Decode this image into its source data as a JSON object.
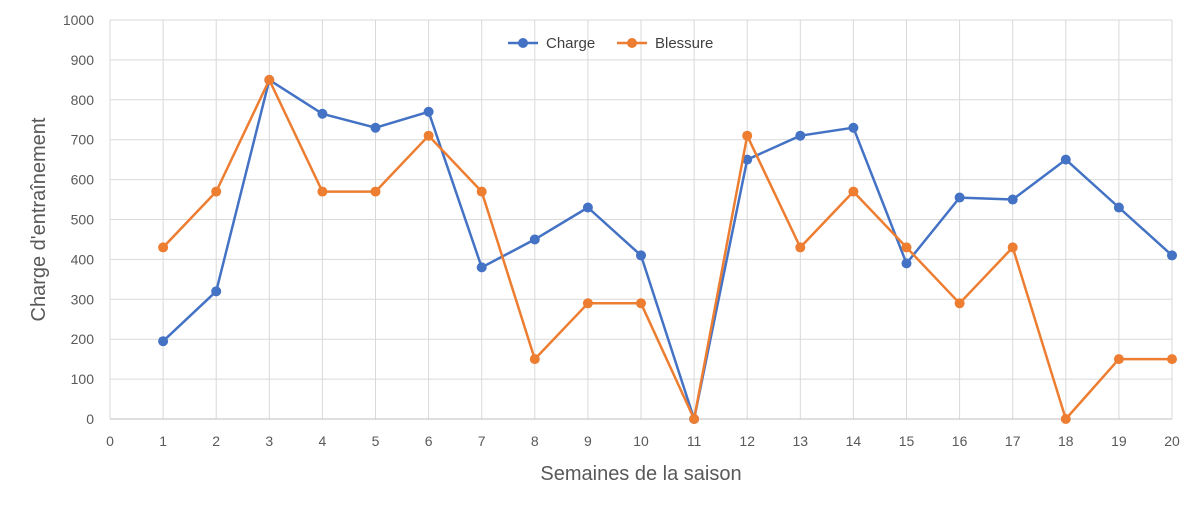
{
  "chart_data": {
    "type": "line",
    "title": "",
    "xlabel": "Semaines de la saison",
    "ylabel": "Charge d'entraînement",
    "xlim": [
      0,
      20
    ],
    "ylim": [
      0,
      1000
    ],
    "x_ticks": [
      0,
      1,
      2,
      3,
      4,
      5,
      6,
      7,
      8,
      9,
      10,
      11,
      12,
      13,
      14,
      15,
      16,
      17,
      18,
      19,
      20
    ],
    "y_ticks": [
      0,
      100,
      200,
      300,
      400,
      500,
      600,
      700,
      800,
      900,
      1000
    ],
    "grid": true,
    "legend_position": "top-center",
    "x": [
      1,
      2,
      3,
      4,
      5,
      6,
      7,
      8,
      9,
      10,
      11,
      12,
      13,
      14,
      15,
      16,
      17,
      18,
      19,
      20
    ],
    "series": [
      {
        "name": "Charge",
        "color": "#4472C4",
        "values": [
          195,
          320,
          850,
          765,
          730,
          770,
          380,
          450,
          530,
          410,
          0,
          650,
          710,
          730,
          390,
          555,
          550,
          650,
          530,
          410
        ]
      },
      {
        "name": "Blessure",
        "color": "#ED7D31",
        "values": [
          430,
          570,
          850,
          570,
          570,
          710,
          570,
          150,
          290,
          290,
          0,
          710,
          430,
          570,
          430,
          290,
          430,
          0,
          150,
          150
        ]
      }
    ]
  }
}
